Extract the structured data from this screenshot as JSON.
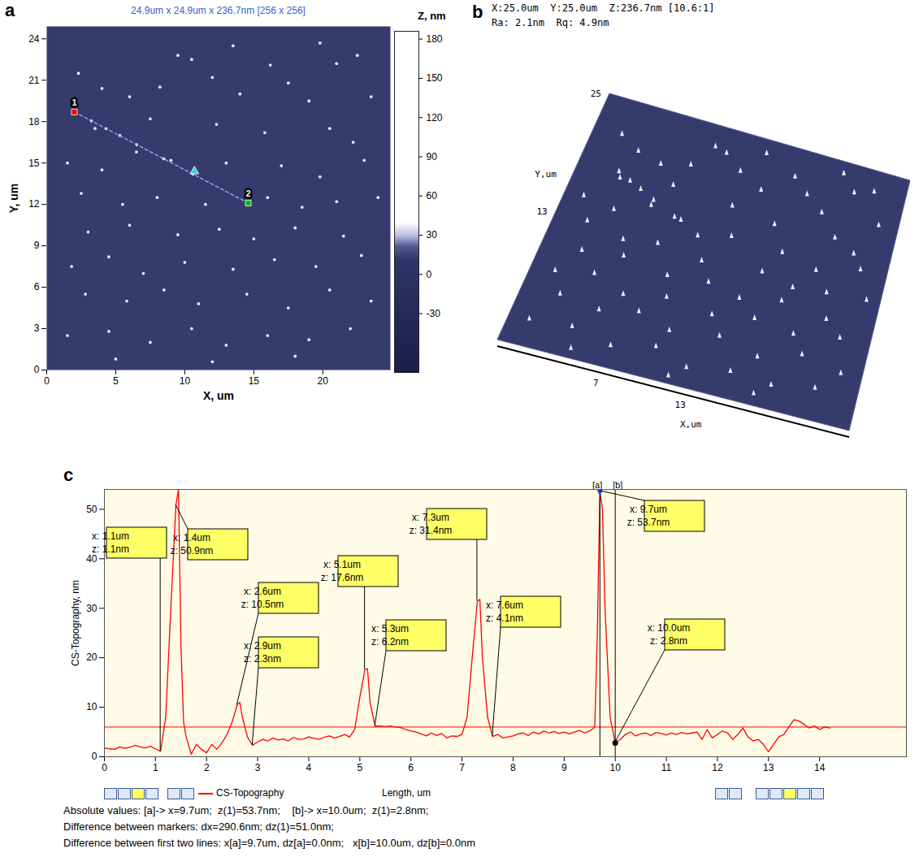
{
  "chart_data": [
    {
      "panel": "a",
      "type": "topography",
      "title": "24.9um x 24.9um x 236.7nm [256 x 256]",
      "x_label": "X, um",
      "y_label": "Y, um",
      "xlim": [
        0,
        24.9
      ],
      "ylim": [
        0,
        24.9
      ],
      "xticks": [
        0,
        5,
        10,
        15,
        20
      ],
      "yticks": [
        0,
        3,
        6,
        9,
        12,
        15,
        18,
        21,
        24
      ],
      "color": "#363b6e",
      "colorbar": {
        "label": "Z, nm",
        "range": [
          -75,
          186
        ],
        "ticks": [
          -30,
          0,
          30,
          60,
          90,
          120,
          150,
          180
        ]
      },
      "particles": [
        [
          2.3,
          21.5
        ],
        [
          9.5,
          22.8
        ],
        [
          10.5,
          22.5
        ],
        [
          12.0,
          21.2
        ],
        [
          13.5,
          23.5
        ],
        [
          16.2,
          22.1
        ],
        [
          19.8,
          23.7
        ],
        [
          21.0,
          22.2
        ],
        [
          22.5,
          22.8
        ],
        [
          4.0,
          20.4
        ],
        [
          6.0,
          19.8
        ],
        [
          8.2,
          20.5
        ],
        [
          14.0,
          20.0
        ],
        [
          17.5,
          20.8
        ],
        [
          19.0,
          19.5
        ],
        [
          23.5,
          19.8
        ],
        [
          3.5,
          17.5
        ],
        [
          5.3,
          17.0
        ],
        [
          7.5,
          18.2
        ],
        [
          12.3,
          17.8
        ],
        [
          15.8,
          17.2
        ],
        [
          20.5,
          17.5
        ],
        [
          22.2,
          16.5
        ],
        [
          1.5,
          15.0
        ],
        [
          4.0,
          14.5
        ],
        [
          6.5,
          15.8
        ],
        [
          9.0,
          15.2
        ],
        [
          13.0,
          15.0
        ],
        [
          17.0,
          14.8
        ],
        [
          19.8,
          14.0
        ],
        [
          23.0,
          15.2
        ],
        [
          2.5,
          12.8
        ],
        [
          5.5,
          12.0
        ],
        [
          8.0,
          12.5
        ],
        [
          11.5,
          12.0
        ],
        [
          16.0,
          12.5
        ],
        [
          18.5,
          11.8
        ],
        [
          21.0,
          12.2
        ],
        [
          24.0,
          12.5
        ],
        [
          3.0,
          10.0
        ],
        [
          6.0,
          10.5
        ],
        [
          9.5,
          9.8
        ],
        [
          12.5,
          10.2
        ],
        [
          15.0,
          9.5
        ],
        [
          18.0,
          10.3
        ],
        [
          21.5,
          9.7
        ],
        [
          1.8,
          7.5
        ],
        [
          4.5,
          8.2
        ],
        [
          7.0,
          7.0
        ],
        [
          10.0,
          7.8
        ],
        [
          13.5,
          7.3
        ],
        [
          16.5,
          8.0
        ],
        [
          19.5,
          7.5
        ],
        [
          22.8,
          8.3
        ],
        [
          2.8,
          5.5
        ],
        [
          5.8,
          5.0
        ],
        [
          8.5,
          5.8
        ],
        [
          11.0,
          4.8
        ],
        [
          14.5,
          5.5
        ],
        [
          17.5,
          4.5
        ],
        [
          20.5,
          5.8
        ],
        [
          23.5,
          5.0
        ],
        [
          1.5,
          2.5
        ],
        [
          4.5,
          2.8
        ],
        [
          7.5,
          2.0
        ],
        [
          10.5,
          3.0
        ],
        [
          13.0,
          1.8
        ],
        [
          16.0,
          2.5
        ],
        [
          19.0,
          2.2
        ],
        [
          22.0,
          3.0
        ],
        [
          5.0,
          0.8
        ],
        [
          12.0,
          0.6
        ],
        [
          18.0,
          1.0
        ],
        [
          3.24,
          18.05
        ],
        [
          4.3,
          17.49
        ],
        [
          6.52,
          16.33
        ],
        [
          8.47,
          15.31
        ],
        [
          10.59,
          14.2
        ]
      ],
      "profile_line": {
        "color": "#a0b8ff",
        "start": {
          "label": "1",
          "x": 2.0,
          "y": 18.7,
          "color": "#ff0000",
          "marker": "square"
        },
        "end": {
          "label": "2",
          "x": 14.6,
          "y": 12.1,
          "color": "#00c000",
          "marker": "square"
        },
        "cursor": {
          "x": 10.7,
          "y": 14.4,
          "color": "#40d0e0",
          "marker": "triangle"
        }
      }
    },
    {
      "panel": "b",
      "type": "surface_3d",
      "header": [
        "X:25.0um  Y:25.0um  Z:236.7nm [10.6:1]",
        "Ra: 2.1nm  Rq: 4.9nm"
      ],
      "x_label": "X,um",
      "y_label": "Y,um",
      "xlim": [
        0,
        25
      ],
      "ylim": [
        0,
        25
      ],
      "xticks": [
        7,
        13
      ],
      "yticks": [
        13,
        25
      ]
    },
    {
      "panel": "c",
      "type": "line",
      "x_label": "Length, um",
      "y_label": "CS-Topography, nm",
      "xlim": [
        0,
        15.7
      ],
      "ylim": [
        0,
        54
      ],
      "xticks": [
        0,
        1,
        2,
        3,
        4,
        5,
        6,
        7,
        8,
        9,
        10,
        11,
        12,
        13,
        14
      ],
      "yticks": [
        0,
        10,
        20,
        30,
        40,
        50
      ],
      "series": [
        {
          "name": "CS-Topography",
          "color": "#ff0000",
          "x": [
            0,
            0.1,
            0.2,
            0.3,
            0.4,
            0.5,
            0.6,
            0.7,
            0.8,
            0.9,
            1.0,
            1.1,
            1.2,
            1.3,
            1.4,
            1.45,
            1.5,
            1.55,
            1.6,
            1.7,
            1.8,
            1.9,
            2.0,
            2.1,
            2.2,
            2.3,
            2.4,
            2.5,
            2.6,
            2.65,
            2.7,
            2.8,
            2.9,
            3.0,
            3.1,
            3.2,
            3.3,
            3.4,
            3.5,
            3.6,
            3.7,
            3.8,
            3.9,
            4.0,
            4.1,
            4.2,
            4.3,
            4.4,
            4.5,
            4.6,
            4.7,
            4.8,
            4.9,
            5.0,
            5.1,
            5.15,
            5.2,
            5.3,
            5.4,
            5.5,
            5.6,
            5.7,
            5.8,
            5.9,
            6.0,
            6.1,
            6.2,
            6.3,
            6.4,
            6.5,
            6.6,
            6.7,
            6.8,
            6.9,
            7.0,
            7.1,
            7.2,
            7.3,
            7.35,
            7.4,
            7.5,
            7.6,
            7.7,
            7.8,
            7.9,
            8.0,
            8.1,
            8.2,
            8.3,
            8.4,
            8.5,
            8.6,
            8.7,
            8.8,
            8.9,
            9.0,
            9.1,
            9.2,
            9.3,
            9.4,
            9.5,
            9.6,
            9.65,
            9.7,
            9.75,
            9.8,
            9.9,
            10.0,
            10.1,
            10.2,
            10.3,
            10.4,
            10.5,
            10.6,
            10.7,
            10.8,
            10.9,
            11.0,
            11.1,
            11.2,
            11.3,
            11.4,
            11.5,
            11.6,
            11.7,
            11.8,
            11.9,
            12.0,
            12.1,
            12.2,
            12.3,
            12.4,
            12.5,
            12.6,
            12.7,
            12.8,
            12.9,
            13.0,
            13.1,
            13.2,
            13.3,
            13.4,
            13.5,
            13.6,
            13.7,
            13.8,
            13.9,
            14.0,
            14.1,
            14.2
          ],
          "values": [
            1.8,
            1.6,
            1.5,
            2.0,
            1.7,
            1.9,
            2.3,
            2.0,
            1.8,
            2.1,
            1.6,
            1.1,
            8,
            30,
            50.9,
            54,
            22,
            7,
            4,
            0.5,
            2.5,
            1.5,
            0.8,
            2.5,
            1.5,
            2.8,
            4.5,
            7,
            10.5,
            11,
            8,
            4,
            2.3,
            3.0,
            3.5,
            3.2,
            3.8,
            3.4,
            3.6,
            3.2,
            3.9,
            3.5,
            3.6,
            4.0,
            3.7,
            3.5,
            3.9,
            4.2,
            3.8,
            4.1,
            4.5,
            4.0,
            5.5,
            12,
            17.6,
            17.8,
            11,
            6.2,
            6.2,
            6.1,
            6.2,
            6.0,
            5.9,
            5.5,
            5.2,
            5.0,
            4.6,
            4.2,
            4.8,
            4.3,
            4.7,
            3.8,
            4.2,
            4.1,
            4.5,
            8,
            20,
            31.4,
            31.8,
            20,
            8,
            4.1,
            4.5,
            3.8,
            4.0,
            4.2,
            4.6,
            4.8,
            4.3,
            5.0,
            4.6,
            5.2,
            4.8,
            5.1,
            4.7,
            5.0,
            4.6,
            5.0,
            5.3,
            4.8,
            5.2,
            6,
            25,
            53.7,
            50,
            30,
            8,
            2.8,
            3.5,
            4.5,
            5.0,
            4.2,
            4.6,
            4.8,
            4.3,
            4.9,
            4.7,
            4.4,
            4.8,
            4.5,
            4.9,
            4.6,
            4.8,
            5.0,
            3.5,
            5.5,
            3.8,
            4.5,
            5.2,
            4.8,
            3.5,
            4.5,
            5.8,
            4.0,
            3.2,
            3.5,
            2.5,
            1.0,
            2.5,
            4.0,
            4.5,
            6.0,
            7.5,
            7.2,
            6.5,
            5.8,
            6.2,
            5.5,
            6.0,
            5.8
          ]
        }
      ],
      "reference_level": 6,
      "annotations": [
        {
          "x": 1.1,
          "z": 1.1,
          "text": [
            "x: 1.1um",
            "z: 1.1nm"
          ]
        },
        {
          "x": 1.4,
          "z": 50.9,
          "text": [
            "x: 1.4um",
            "z: 50.9nm"
          ]
        },
        {
          "x": 2.6,
          "z": 10.5,
          "text": [
            "x: 2.6um",
            "z: 10.5nm"
          ]
        },
        {
          "x": 2.9,
          "z": 2.3,
          "text": [
            "x: 2.9um",
            "z: 2.3nm"
          ]
        },
        {
          "x": 5.1,
          "z": 17.6,
          "text": [
            "x: 5.1um",
            "z: 17.6nm"
          ]
        },
        {
          "x": 5.3,
          "z": 6.2,
          "text": [
            "x: 5.3um",
            "z: 6.2nm"
          ]
        },
        {
          "x": 7.3,
          "z": 31.4,
          "text": [
            "x: 7.3um",
            "z: 31.4nm"
          ]
        },
        {
          "x": 7.6,
          "z": 4.1,
          "text": [
            "x: 7.6um",
            "z: 4.1nm"
          ]
        },
        {
          "x": 9.7,
          "z": 53.7,
          "text": [
            "x: 9.7um",
            "z: 53.7nm"
          ]
        },
        {
          "x": 10.0,
          "z": 2.8,
          "text": [
            "x: 10.0um",
            "z: 2.8nm"
          ]
        }
      ],
      "markers": [
        {
          "label": "[a]",
          "x": 9.7,
          "z": 53.7,
          "marker": "diamond",
          "color": "#1f4fd0"
        },
        {
          "label": "[b]",
          "x": 10.0,
          "z": 2.8,
          "marker": "circle",
          "color": "#000000"
        }
      ],
      "status_lines": [
        "Absolute values: [a]-> x=9.7um;  z(1)=53.7nm;    [b]-> x=10.0um;  z(1)=2.8nm;",
        "Difference between markers: dx=290.6nm; dz(1)=51.0nm;",
        "Difference between first two lines: x[a]=9.7um, dz[a]=0.0nm;   x[b]=10.0um, dz[b]=0.0nm"
      ]
    }
  ]
}
